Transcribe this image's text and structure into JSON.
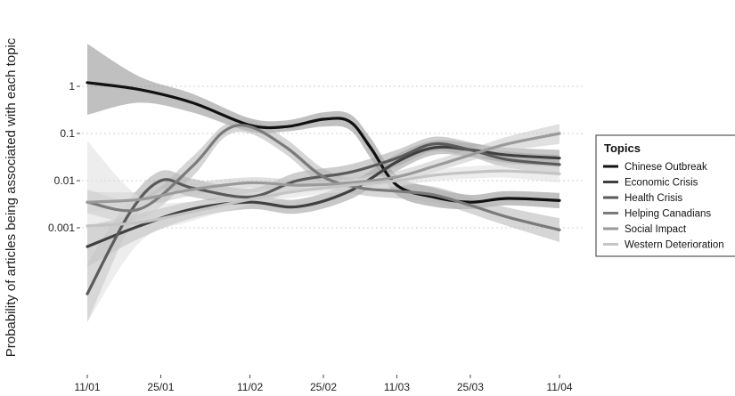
{
  "chart_data": {
    "type": "line",
    "title": "",
    "xlabel": "",
    "ylabel": "Probability of articles being associated with each topic",
    "y_scale": "log",
    "yticks": [
      {
        "value": 1,
        "label": "1"
      },
      {
        "value": 0.1,
        "label": "0.1"
      },
      {
        "value": 0.01,
        "label": "0.01"
      },
      {
        "value": 0.001,
        "label": "0.001"
      }
    ],
    "xticks": [
      "11/01",
      "25/01",
      "11/02",
      "25/02",
      "11/03",
      "25/03",
      "11/04"
    ],
    "x_day_index": [
      0,
      14,
      31,
      45,
      59,
      73,
      90
    ],
    "grid": "horizontal dotted at y ticks",
    "legend": {
      "title": "Topics",
      "position": "right"
    },
    "series": [
      {
        "name": "Chinese Outbreak",
        "color": "#111111",
        "band_color": "#8c8c8c",
        "x": [
          0,
          10,
          20,
          31,
          38,
          45,
          50,
          54,
          59,
          66,
          73,
          80,
          90
        ],
        "y": [
          1.2,
          0.85,
          0.45,
          0.15,
          0.14,
          0.2,
          0.18,
          0.05,
          0.008,
          0.0045,
          0.0035,
          0.0042,
          0.0038
        ],
        "band_lo": [
          0.25,
          0.45,
          0.28,
          0.11,
          0.11,
          0.14,
          0.12,
          0.03,
          0.005,
          0.0028,
          0.0025,
          0.003,
          0.0026
        ],
        "band_hi": [
          8.0,
          1.6,
          0.7,
          0.21,
          0.19,
          0.28,
          0.26,
          0.08,
          0.013,
          0.007,
          0.005,
          0.006,
          0.0055
        ]
      },
      {
        "name": "Economic Crisis",
        "color": "#404040",
        "band_color": "#9a9a9a",
        "x": [
          0,
          10,
          20,
          31,
          40,
          50,
          59,
          66,
          73,
          80,
          90
        ],
        "y": [
          0.0004,
          0.0011,
          0.0025,
          0.0035,
          0.0028,
          0.006,
          0.025,
          0.05,
          0.045,
          0.035,
          0.03
        ],
        "band_lo": [
          0.00015,
          0.0006,
          0.0016,
          0.0025,
          0.002,
          0.004,
          0.016,
          0.035,
          0.032,
          0.024,
          0.019
        ],
        "band_hi": [
          0.0011,
          0.002,
          0.0036,
          0.0048,
          0.004,
          0.009,
          0.036,
          0.07,
          0.062,
          0.05,
          0.045
        ]
      },
      {
        "name": "Health Crisis",
        "color": "#5a5a5a",
        "band_color": "#a5a5a5",
        "x": [
          0,
          8,
          14,
          20,
          31,
          40,
          50,
          59,
          66,
          73,
          80,
          90
        ],
        "y": [
          4e-05,
          0.002,
          0.01,
          0.007,
          0.0045,
          0.01,
          0.015,
          0.03,
          0.06,
          0.045,
          0.028,
          0.022
        ],
        "band_lo": [
          1e-05,
          0.001,
          0.006,
          0.0045,
          0.003,
          0.0065,
          0.01,
          0.02,
          0.042,
          0.032,
          0.019,
          0.014
        ],
        "band_hi": [
          0.00018,
          0.004,
          0.016,
          0.011,
          0.0068,
          0.015,
          0.022,
          0.045,
          0.085,
          0.065,
          0.042,
          0.035
        ]
      },
      {
        "name": "Helping Canadians",
        "color": "#7a7a7a",
        "band_color": "#b5b5b5",
        "x": [
          0,
          10,
          20,
          26,
          31,
          38,
          45,
          52,
          59,
          66,
          73,
          80,
          90
        ],
        "y": [
          0.0035,
          0.0025,
          0.02,
          0.11,
          0.14,
          0.05,
          0.012,
          0.007,
          0.006,
          0.005,
          0.003,
          0.0017,
          0.0009
        ],
        "band_lo": [
          0.002,
          0.0015,
          0.012,
          0.08,
          0.1,
          0.035,
          0.008,
          0.005,
          0.0042,
          0.0035,
          0.002,
          0.0011,
          0.0005
        ],
        "band_hi": [
          0.0065,
          0.004,
          0.032,
          0.15,
          0.2,
          0.075,
          0.018,
          0.01,
          0.009,
          0.0075,
          0.0045,
          0.0027,
          0.0016
        ]
      },
      {
        "name": "Social Impact",
        "color": "#9a9a9a",
        "band_color": "#c6c6c6",
        "x": [
          0,
          10,
          20,
          31,
          40,
          50,
          59,
          66,
          73,
          80,
          90
        ],
        "y": [
          0.0035,
          0.004,
          0.0065,
          0.009,
          0.008,
          0.009,
          0.012,
          0.02,
          0.035,
          0.06,
          0.1
        ],
        "band_lo": [
          0.0022,
          0.0028,
          0.0048,
          0.007,
          0.006,
          0.0068,
          0.009,
          0.015,
          0.026,
          0.042,
          0.06
        ],
        "band_hi": [
          0.0058,
          0.0058,
          0.009,
          0.0118,
          0.0106,
          0.012,
          0.016,
          0.027,
          0.047,
          0.085,
          0.16
        ]
      },
      {
        "name": "Western Deterioration",
        "color": "#c4c4c4",
        "band_color": "#dedede",
        "x": [
          0,
          10,
          20,
          31,
          40,
          50,
          59,
          66,
          73,
          80,
          90
        ],
        "y": [
          0.0011,
          0.0013,
          0.0022,
          0.004,
          0.006,
          0.008,
          0.01,
          0.013,
          0.015,
          0.016,
          0.014
        ],
        "band_lo": [
          1e-05,
          0.0005,
          0.0014,
          0.003,
          0.0045,
          0.006,
          0.0075,
          0.0098,
          0.011,
          0.0115,
          0.009
        ],
        "band_hi": [
          0.07,
          0.0045,
          0.0036,
          0.0055,
          0.008,
          0.0105,
          0.013,
          0.017,
          0.02,
          0.022,
          0.021
        ]
      }
    ]
  }
}
